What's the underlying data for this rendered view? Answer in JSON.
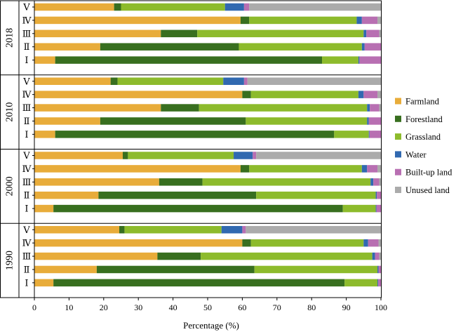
{
  "chart_data": {
    "type": "bar",
    "orientation": "horizontal",
    "stacked": true,
    "xlabel": "Percentage (%)",
    "xlim": [
      0,
      100
    ],
    "xticks": [
      0,
      10,
      20,
      30,
      40,
      50,
      60,
      70,
      80,
      90,
      100
    ],
    "legend_position": "right",
    "categories": [
      "Farmland",
      "Forestland",
      "Grassland",
      "Water",
      "Built-up land",
      "Unused land"
    ],
    "colors": [
      "#E8AC3A",
      "#386F1F",
      "#8DBB2C",
      "#3169B0",
      "#B86FB2",
      "#ABABAB"
    ],
    "groups": [
      {
        "year": "2018",
        "rows": [
          {
            "label": "Ⅴ",
            "values": [
              23.0,
              2.0,
              30.0,
              5.5,
              1.5,
              38.0
            ]
          },
          {
            "label": "Ⅳ",
            "values": [
              59.5,
              2.5,
              31.0,
              1.5,
              4.5,
              1.0
            ]
          },
          {
            "label": "Ⅲ",
            "values": [
              36.5,
              10.5,
              48.0,
              0.8,
              3.7,
              0.5
            ]
          },
          {
            "label": "Ⅱ",
            "values": [
              19.0,
              40.0,
              35.5,
              0.8,
              4.7,
              0.0
            ]
          },
          {
            "label": "Ⅰ",
            "values": [
              6.0,
              77.0,
              10.5,
              0.3,
              6.2,
              0.0
            ]
          }
        ]
      },
      {
        "year": "2010",
        "rows": [
          {
            "label": "Ⅴ",
            "values": [
              22.0,
              2.0,
              30.5,
              6.0,
              1.0,
              38.5
            ]
          },
          {
            "label": "Ⅳ",
            "values": [
              60.0,
              2.5,
              31.0,
              1.5,
              4.0,
              1.0
            ]
          },
          {
            "label": "Ⅲ",
            "values": [
              36.5,
              11.0,
              48.5,
              0.8,
              2.7,
              0.5
            ]
          },
          {
            "label": "Ⅱ",
            "values": [
              19.0,
              42.0,
              35.0,
              0.5,
              3.5,
              0.0
            ]
          },
          {
            "label": "Ⅰ",
            "values": [
              6.0,
              80.5,
              10.0,
              0.2,
              3.3,
              0.0
            ]
          }
        ]
      },
      {
        "year": "2000",
        "rows": [
          {
            "label": "Ⅴ",
            "values": [
              25.5,
              1.5,
              30.5,
              5.5,
              1.0,
              36.0
            ]
          },
          {
            "label": "Ⅳ",
            "values": [
              59.5,
              2.5,
              32.5,
              1.5,
              3.0,
              1.0
            ]
          },
          {
            "label": "Ⅲ",
            "values": [
              36.0,
              12.5,
              48.5,
              0.8,
              1.7,
              0.5
            ]
          },
          {
            "label": "Ⅱ",
            "values": [
              18.5,
              45.5,
              34.5,
              0.3,
              1.2,
              0.0
            ]
          },
          {
            "label": "Ⅰ",
            "values": [
              5.5,
              83.5,
              9.5,
              0.2,
              1.3,
              0.0
            ]
          }
        ]
      },
      {
        "year": "1990",
        "rows": [
          {
            "label": "Ⅴ",
            "values": [
              24.5,
              1.5,
              28.0,
              6.0,
              1.0,
              39.0
            ]
          },
          {
            "label": "Ⅳ",
            "values": [
              60.0,
              2.5,
              32.5,
              1.3,
              3.0,
              0.7
            ]
          },
          {
            "label": "Ⅲ",
            "values": [
              35.5,
              12.5,
              49.5,
              0.8,
              1.2,
              0.5
            ]
          },
          {
            "label": "Ⅱ",
            "values": [
              18.0,
              45.5,
              35.5,
              0.3,
              0.7,
              0.0
            ]
          },
          {
            "label": "Ⅰ",
            "values": [
              5.5,
              84.0,
              9.5,
              0.2,
              0.8,
              0.0
            ]
          }
        ]
      }
    ]
  }
}
